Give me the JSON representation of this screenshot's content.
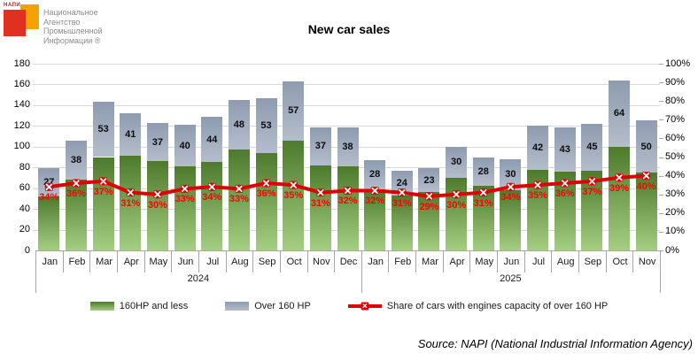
{
  "logo": {
    "acronym": "НАПИ",
    "text_lines": [
      "Национальное",
      "Агентство",
      "Промышленной",
      "Информации ®"
    ],
    "red_square_color": "#e03020",
    "orange_square_color": "#f5a100"
  },
  "chart_data": {
    "type": "bar",
    "title": "New car sales",
    "categories": [
      "Jan",
      "Feb",
      "Mar",
      "Apr",
      "May",
      "Jun",
      "Jul",
      "Aug",
      "Sep",
      "Oct",
      "Nov",
      "Dec",
      "Jan",
      "Feb",
      "Mar",
      "Apr",
      "May",
      "Jun",
      "Jul",
      "Aug",
      "Sep",
      "Oct",
      "Nov"
    ],
    "year_groups": [
      {
        "label": "2024",
        "months": 12
      },
      {
        "label": "2025",
        "months": 11
      }
    ],
    "series": [
      {
        "name": "160HP and less",
        "type": "bar-stacked",
        "color_top": "#4e7a2e",
        "color_bottom": "#a4ce81",
        "values": [
          52,
          68,
          90,
          91,
          86,
          81,
          85,
          97,
          94,
          106,
          82,
          81,
          59,
          53,
          56,
          70,
          62,
          58,
          78,
          76,
          77,
          100,
          75
        ]
      },
      {
        "name": "Over 160 HP",
        "type": "bar-stacked",
        "color_top": "#8e9bb0",
        "color_bottom": "#b4bdcb",
        "values": [
          27,
          38,
          53,
          41,
          37,
          40,
          44,
          48,
          53,
          57,
          37,
          38,
          28,
          24,
          23,
          30,
          28,
          30,
          42,
          43,
          45,
          64,
          50
        ]
      },
      {
        "name": "Share of cars with engines capacity of over 160 HP",
        "type": "line",
        "axis": "right",
        "color": "#e00000",
        "marker": "x",
        "suffix": "%",
        "values": [
          34,
          36,
          37,
          31,
          30,
          33,
          34,
          33,
          36,
          35,
          31,
          32,
          32,
          31,
          29,
          30,
          31,
          34,
          35,
          36,
          37,
          39,
          40
        ]
      }
    ],
    "left_axis": {
      "min": 0,
      "max": 180,
      "step": 20
    },
    "right_axis": {
      "min": 0,
      "max": 100,
      "step": 10,
      "suffix": "%"
    },
    "grid": true,
    "legend_position": "bottom"
  },
  "colors": {
    "gridline": "#d9d9d9",
    "axis": "#a6a6a6",
    "pct_label": "#ff0000",
    "value_label": "#0d0d0d"
  },
  "source": "Source: NAPI (National Industrial Information Agency)"
}
